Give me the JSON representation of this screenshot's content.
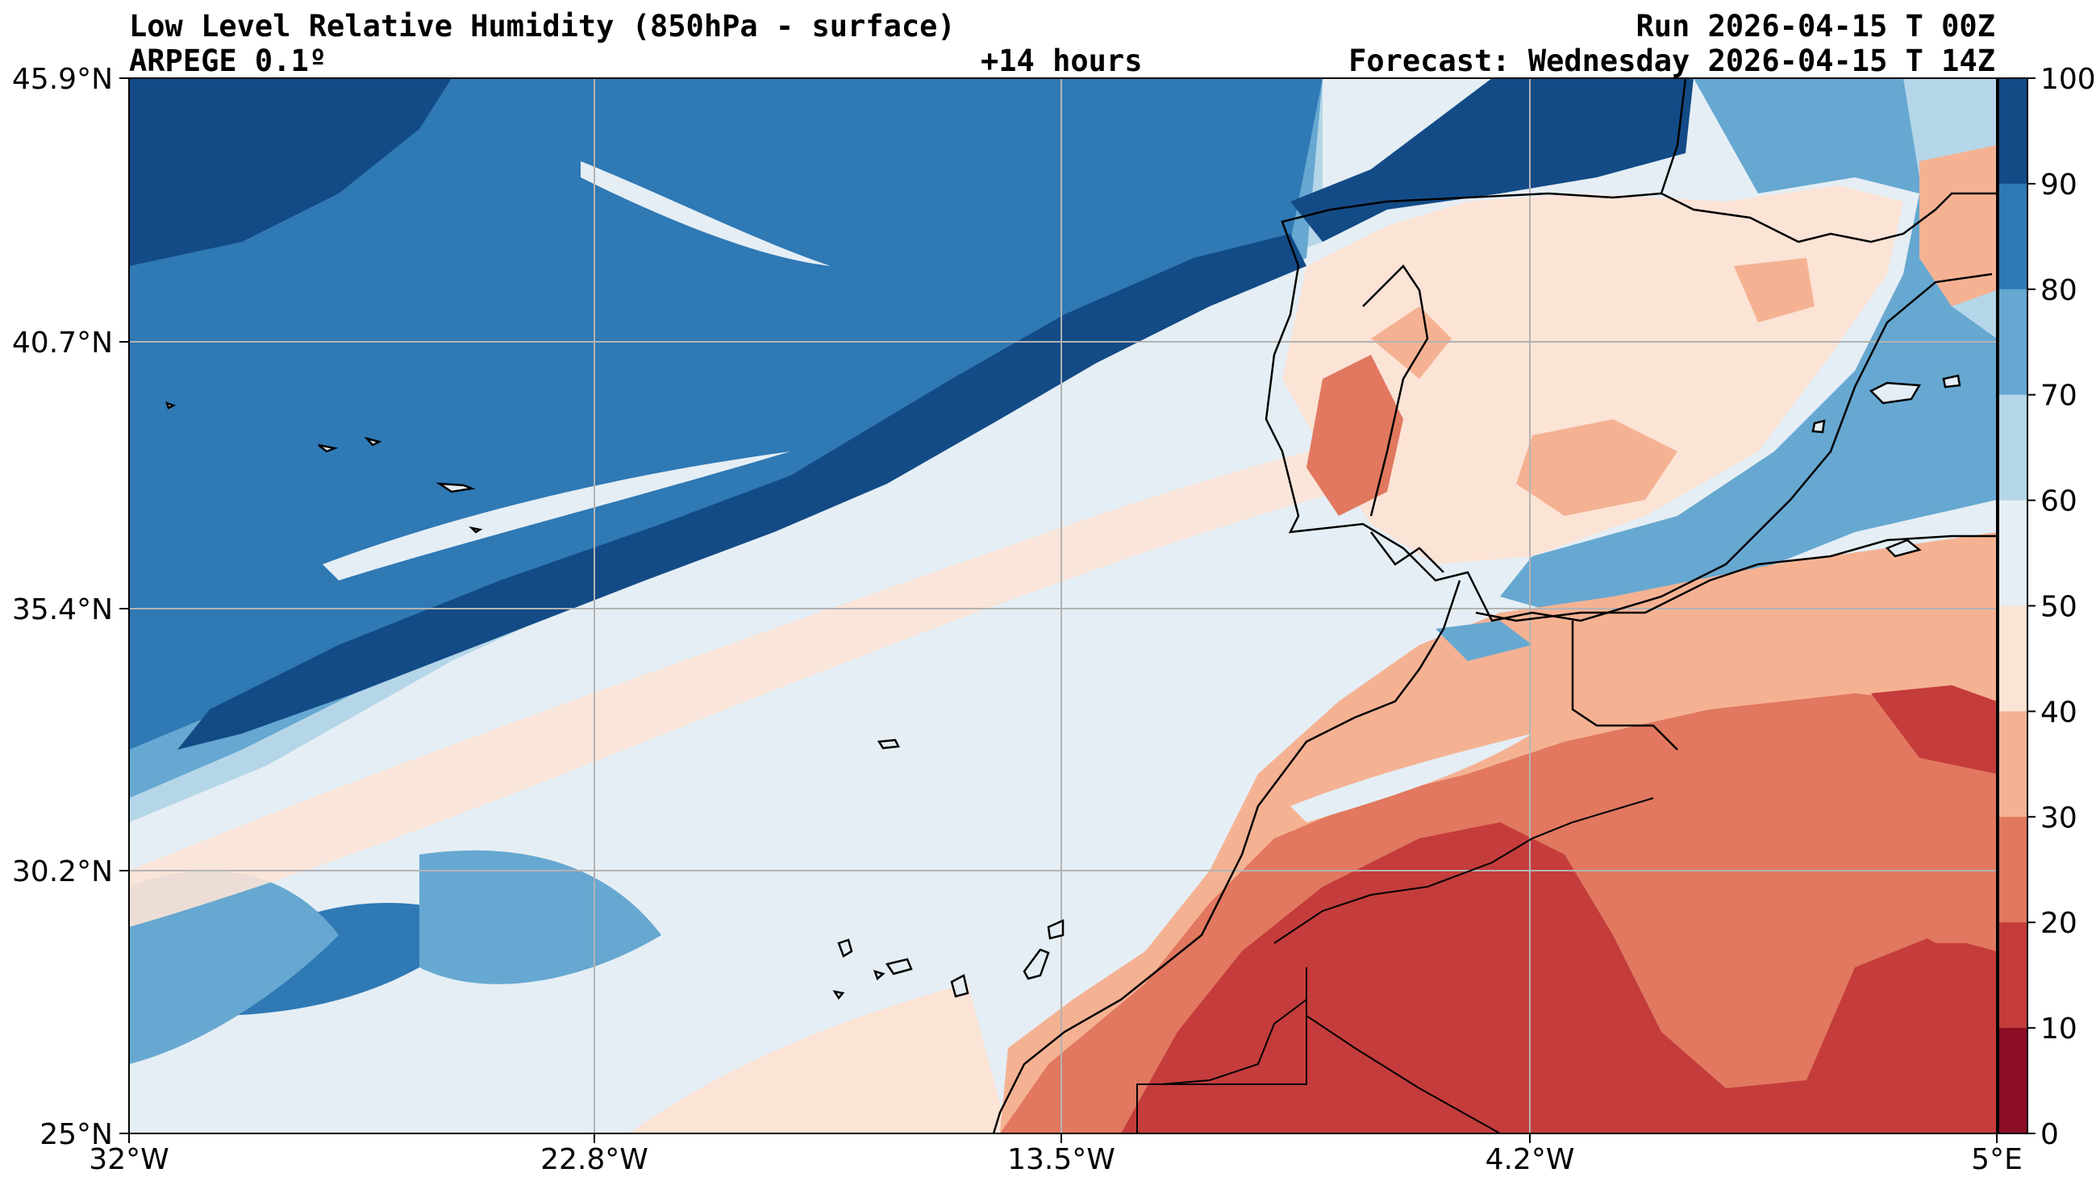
{
  "header": {
    "title": "Low Level Relative Humidity (850hPa - surface)",
    "run": "Run 2026-04-15 T 00Z",
    "model": "ARPEGE 0.1º",
    "lead": "+14 hours",
    "valid": "Forecast: Wednesday 2026-04-15 T 14Z"
  },
  "map": {
    "lon_labels": [
      "32°W",
      "22.8°W",
      "13.5°W",
      "4.2°W",
      "5°E"
    ],
    "lat_labels": [
      "45.9°N",
      "40.7°N",
      "35.4°N",
      "30.2°N",
      "25°N"
    ],
    "grid": true
  },
  "colorbar": {
    "ticks": [
      "100",
      "90",
      "80",
      "70",
      "60",
      "50",
      "40",
      "30",
      "20",
      "10",
      "0"
    ],
    "colors": [
      "#134b87",
      "#2f79b5",
      "#66a8d1",
      "#b5d6e8",
      "#e5eef4",
      "#fbe3d6",
      "#f5b293",
      "#e1785f",
      "#c43c3c",
      "#8b0d25"
    ]
  }
}
